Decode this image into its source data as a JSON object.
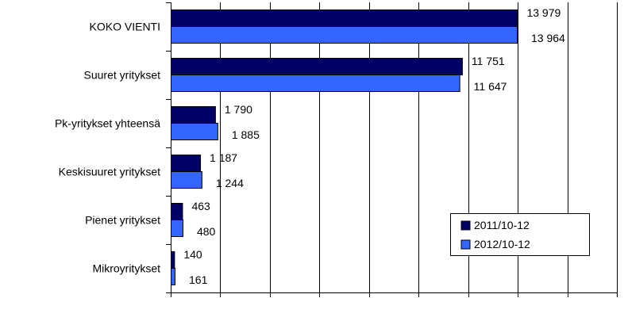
{
  "chart_data": {
    "type": "bar",
    "orientation": "horizontal",
    "categories": [
      "KOKO VIENTI",
      "Suuret yritykset",
      "Pk-yritykset yhteensä",
      "Keskisuuret yritykset",
      "Pienet yritykset",
      "Mikroyritykset"
    ],
    "series": [
      {
        "name": "2011/10-12",
        "color": "#000066",
        "values": [
          13979,
          11751,
          1790,
          1187,
          463,
          140
        ],
        "labels": [
          "13 979",
          "11 751",
          "1 790",
          "1 187",
          "463",
          "140"
        ]
      },
      {
        "name": "2012/10-12",
        "color": "#3366FF",
        "values": [
          13964,
          11647,
          1885,
          1244,
          480,
          161
        ],
        "labels": [
          "13 964",
          "11 647",
          "1 885",
          "1 244",
          "480",
          "161"
        ]
      }
    ],
    "xlim": [
      0,
      18000
    ],
    "x_gridlines": true,
    "x_tick_labels_shown": false,
    "legend": {
      "placement": "bottom-right",
      "entries": [
        "2011/10-12",
        "2012/10-12"
      ]
    }
  }
}
